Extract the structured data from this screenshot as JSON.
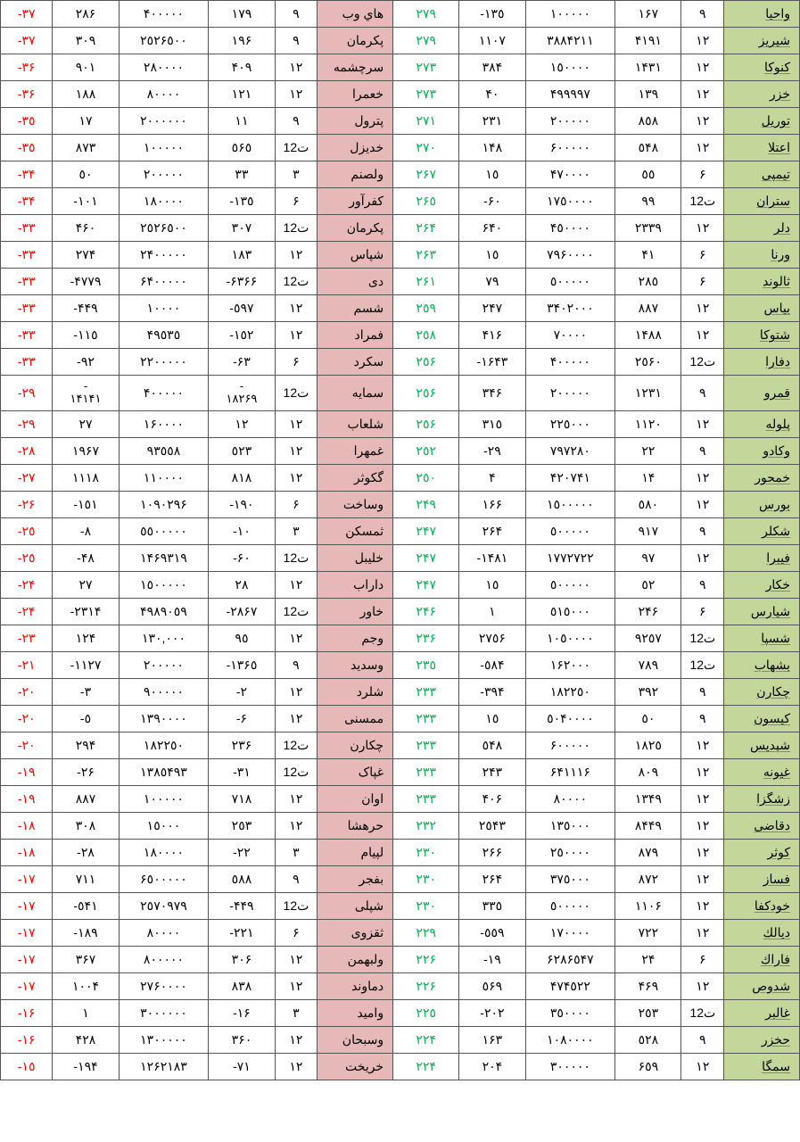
{
  "colors": {
    "greenBg": "#c4d79b",
    "pinkBg": "#e6b8b7",
    "greenText": "#00b050",
    "redText": "#ff0000",
    "border": "#555555"
  },
  "columnWidths": [
    "80px",
    "45px",
    "70px",
    "95px",
    "70px",
    "70px",
    "80px",
    "45px",
    "70px",
    "95px",
    "70px",
    "55px"
  ],
  "rows": [
    {
      "nameR": "واحيا",
      "c2": "٩",
      "c3": "١۶٧",
      "c4": "١٠٠٠٠٠",
      "c5": "-١٣٥",
      "c6g": "٢٧٩",
      "nameM": "هاي وب",
      "c8": "٩",
      "c9": "١٧٩",
      "c10": "۴٠٠٠٠٠",
      "c11": "٢٨۶",
      "c12r": "-٣٧"
    },
    {
      "nameR": "شيريز",
      "c2": "١٢",
      "c3": "۴١٩١",
      "c4": "٣٨٨۴٢١١",
      "c5": "١١٠٧",
      "c6g": "٢٧٩",
      "nameM": "پکرمان",
      "c8": "٩",
      "c9": "١٩۶",
      "c10": "٢٥٢۶٥٠٠",
      "c11": "٣٠٩",
      "c12r": "-٣٧"
    },
    {
      "nameR": "كنوكا",
      "c2": "١٢",
      "c3": "١۴٣١",
      "c4": "١٥٠٠٠٠",
      "c5": "٣٨۴",
      "c6g": "٢٧٣",
      "nameM": "سرچشمه",
      "c8": "١٢",
      "c9": "۴٠٩",
      "c10": "٢٨٠٠٠٠",
      "c11": "٩٠١",
      "c12r": "-٣۶"
    },
    {
      "nameR": "خزر",
      "c2": "١٢",
      "c3": "١٣٩",
      "c4": "۴٩٩٩٩٧",
      "c5": "۴٠",
      "c6g": "٢٧٣",
      "nameM": "خعمرا",
      "c8": "١٢",
      "c9": "١٢١",
      "c10": "٨٠٠٠٠",
      "c11": "١٨٨",
      "c12r": "-٣۶"
    },
    {
      "nameR": "توريل",
      "c2": "١٢",
      "c3": "٨٥٨",
      "c4": "٢٠٠٠٠٠",
      "c5": "٢٣١",
      "c6g": "٢٧١",
      "nameM": "پترول",
      "c8": "٩",
      "c9": "١١",
      "c10": "٢٠٠٠٠٠٠",
      "c11": "١٧",
      "c12r": "-٣٥"
    },
    {
      "nameR": "اعتلا",
      "c2": "١٢",
      "c3": "٥۴٨",
      "c4": "۶٠٠٠٠٠",
      "c5": "١۴٨",
      "c6g": "٢٧٠",
      "nameM": "خديزل",
      "c8": "ت12",
      "c9": "٥۶٥",
      "c10": "١٠٠٠٠٠",
      "c11": "٨٧٣",
      "c12r": "-٣٥"
    },
    {
      "nameR": "تيمپى",
      "c2": "۶",
      "c3": "٥٥",
      "c4": "۴٧٠٠٠٠",
      "c5": "١٥",
      "c6g": "٢۶٧",
      "nameM": "ولصنم",
      "c8": "٣",
      "c9": "٣٣",
      "c10": "٢٠٠٠٠٠",
      "c11": "٥٠",
      "c12r": "-٣۴"
    },
    {
      "nameR": "ستران",
      "c2": "ت12",
      "c3": "٩٩",
      "c4": "١٧٥٠٠٠٠",
      "c5": "-۶٠",
      "c6g": "٢۶٥",
      "nameM": "کفرآور",
      "c8": "۶",
      "c9": "-١٣٥",
      "c10": "١٨٠٠٠٠",
      "c11": "-١٠١",
      "c12r": "-٣۴"
    },
    {
      "nameR": "دلر",
      "c2": "١٢",
      "c3": "٢٣٣٩",
      "c4": "۴٥٠٠٠٠",
      "c5": "۶۴٠",
      "c6g": "٢۶۴",
      "nameM": "پکرمان",
      "c8": "ت12",
      "c9": "٣٠٧",
      "c10": "٢٥٢۶٥٠٠",
      "c11": "۴۶٠",
      "c12r": "-٣٣"
    },
    {
      "nameR": "ورنا",
      "c2": "۶",
      "c3": "۴١",
      "c4": "٧٩۶٠٠٠٠",
      "c5": "١٥",
      "c6g": "٢۶٣",
      "nameM": "شپاس",
      "c8": "١٢",
      "c9": "١٨٣",
      "c10": "٢۴٠٠٠٠٠",
      "c11": "٢٧۴",
      "c12r": "-٣٣"
    },
    {
      "nameR": "ثالوند",
      "c2": "۶",
      "c3": "٢٨٥",
      "c4": "٥٠٠٠٠٠",
      "c5": "٧٩",
      "c6g": "٢۶١",
      "nameM": "دى",
      "c8": "ت12",
      "c9": "-۶٣۶۶",
      "c10": "۶۴٠٠٠٠٠",
      "c11": "-۴٧٧٩",
      "c12r": "-٣٣"
    },
    {
      "nameR": "بياس",
      "c2": "١٢",
      "c3": "٨٨٧",
      "c4": "٣۴٠٢٠٠٠",
      "c5": "٢۴٧",
      "c6g": "٢٥٩",
      "nameM": "شسم",
      "c8": "١٢",
      "c9": "-٥٩٧",
      "c10": "١٠٠٠٠",
      "c11": "-۴۴٩",
      "c12r": "-٣٣"
    },
    {
      "nameR": "شتوكا",
      "c2": "١٢",
      "c3": "١۴٨٨",
      "c4": "٧٠٠٠٠",
      "c5": "۴١۶",
      "c6g": "٢٥٨",
      "nameM": "فمراد",
      "c8": "١٢",
      "c9": "-١٥٢",
      "c10": "۴٩٥٣٥",
      "c11": "-١١٥",
      "c12r": "-٣٣"
    },
    {
      "nameR": "دفارا",
      "c2": "ت12",
      "c3": "٢٥۶٠",
      "c4": "۴٠٠٠٠٠",
      "c5": "-١۶۴٣",
      "c6g": "٢٥۶",
      "nameM": "سکرد",
      "c8": "۶",
      "c9": "-۶٣",
      "c10": "٢٢٠٠٠٠٠",
      "c11": "-٩٢",
      "c12r": "-٣٣"
    },
    {
      "nameR": "قمرو",
      "c2": "٩",
      "c3": "١٢٣١",
      "c4": "٢٠٠٠٠٠",
      "c5": "٣۴۶",
      "c6g": "٢٥۶",
      "nameM": "سمايه",
      "c8": "ت12",
      "c9": "-\n١٨٢۶٩",
      "c10": "۴٠٠٠٠٠",
      "c11": "-\n١۴١۴١",
      "c12r": "-٢٩"
    },
    {
      "nameR": "پلوله",
      "c2": "١٢",
      "c3": "١١٢٠",
      "c4": "٢٢٥٠٠٠",
      "c5": "٣١٥",
      "c6g": "٢٥۶",
      "nameM": "شلعاب",
      "c8": "١٢",
      "c9": "١٢",
      "c10": "١۶٠٠٠٠",
      "c11": "٢٧",
      "c12r": "-٢٩"
    },
    {
      "nameR": "وكادو",
      "c2": "٩",
      "c3": "٢٢",
      "c4": "٧٩٧٢٨٠",
      "c5": "-٢٩",
      "c6g": "٢٥٢",
      "nameM": "غمهرا",
      "c8": "١٢",
      "c9": "٥٢٣",
      "c10": "٩٣٥٥٨",
      "c11": "١٩۶٧",
      "c12r": "-٢٨"
    },
    {
      "nameR": "خمحور",
      "c2": "١٢",
      "c3": "١۴",
      "c4": "۴٢٠٧۴١",
      "c5": "۴",
      "c6g": "٢٥٠",
      "nameM": "گکوثر",
      "c8": "١٢",
      "c9": "٨١٨",
      "c10": "١١٠٠٠٠",
      "c11": "١١١٨",
      "c12r": "-٢٧"
    },
    {
      "nameR": "بورس",
      "c2": "١٢",
      "c3": "٥٨٠",
      "c4": "١٥٠٠٠٠٠",
      "c5": "١۶۶",
      "c6g": "٢۴٩",
      "nameM": "وساخت",
      "c8": "۶",
      "c9": "-١٩٠",
      "c10": "١٠٩٠٢٩۶",
      "c11": "-١٥١",
      "c12r": "-٢۶"
    },
    {
      "nameR": "شكلر",
      "c2": "٩",
      "c3": "٩١٧",
      "c4": "٥٠٠٠٠٠",
      "c5": "٢۶۴",
      "c6g": "٢۴٧",
      "nameM": "ثمسکن",
      "c8": "٣",
      "c9": "-١٠",
      "c10": "٥٥٠٠٠٠٠",
      "c11": "-٨",
      "c12r": "-٢٥"
    },
    {
      "nameR": "فيبرا",
      "c2": "١٢",
      "c3": "٩٧",
      "c4": "١٧٧٢٧٢٢",
      "c5": "-١۴٨١",
      "c6g": "٢۴٧",
      "nameM": "خليبل",
      "c8": "ت12",
      "c9": "-۶٠",
      "c10": "١۴۶٩٣١٩",
      "c11": "-۴٨",
      "c12r": "-٢٥"
    },
    {
      "nameR": "خكار",
      "c2": "٩",
      "c3": "٥٢",
      "c4": "٥٠٠٠٠٠",
      "c5": "١٥",
      "c6g": "٢۴٧",
      "nameM": "داراب",
      "c8": "١٢",
      "c9": "٢٨",
      "c10": "١٥٠٠٠٠٠",
      "c11": "٢٧",
      "c12r": "-٢۴"
    },
    {
      "nameR": "شيارس",
      "c2": "۶",
      "c3": "٢۴۶",
      "c4": "٥١٥٠٠٠",
      "c5": "١",
      "c6g": "٢۴۶",
      "nameM": "خاور",
      "c8": "ت12",
      "c9": "-٢٨۶٧",
      "c10": "۴٩٨٩٠٥٩",
      "c11": "-٢٣١۴",
      "c12r": "-٢۴"
    },
    {
      "nameR": "شسپا",
      "c2": "ت12",
      "c3": "٩٢٥٧",
      "c4": "١٠٥٠٠٠٠",
      "c5": "٢٧٥۶",
      "c6g": "٢٣۶",
      "nameM": "وجم",
      "c8": "١٢",
      "c9": "٩٥",
      "c10": "١٣٠,٠٠٠",
      "c11": "١٢۴",
      "c12r": "-٢٣"
    },
    {
      "nameR": "بشهاب",
      "c2": "ت12",
      "c3": "٧٨٩",
      "c4": "١۶٢٠٠٠",
      "c5": "-٥٨۴",
      "c6g": "٢٣٥",
      "nameM": "وسديد",
      "c8": "٩",
      "c9": "-١٣۶٥",
      "c10": "٢٠٠٠٠٠",
      "c11": "-١١٢٧",
      "c12r": "-٢١"
    },
    {
      "nameR": "چكارن",
      "c2": "٩",
      "c3": "٣٩٢",
      "c4": "١٨٢٢٥٠",
      "c5": "-٣٩۴",
      "c6g": "٢٣٣",
      "nameM": "شلرد",
      "c8": "١٢",
      "c9": "-٢",
      "c10": "٩٠٠٠٠٠",
      "c11": "-٣",
      "c12r": "-٢٠"
    },
    {
      "nameR": "كيسون",
      "c2": "٩",
      "c3": "٥٠",
      "c4": "٥٠۴٠٠٠٠",
      "c5": "١٥",
      "c6g": "٢٣٣",
      "nameM": "ممسنى",
      "c8": "١٢",
      "c9": "-۶",
      "c10": "١٣٩٠٠٠٠",
      "c11": "-٥",
      "c12r": "-٢٠"
    },
    {
      "nameR": "شپديس",
      "c2": "١٢",
      "c3": "١٨٢٥",
      "c4": "۶٠٠٠٠٠",
      "c5": "٥۴٨",
      "c6g": "٢٣٣",
      "nameM": "چکارن",
      "c8": "ت12",
      "c9": "٢٣۶",
      "c10": "١٨٢٢٥٠",
      "c11": "٢٩۴",
      "c12r": "-٢٠"
    },
    {
      "nameR": "غيونه",
      "c2": "١٢",
      "c3": "٨٠٩",
      "c4": "۶۴١١١۶",
      "c5": "٢۴٣",
      "c6g": "٢٣٣",
      "nameM": "غپاک",
      "c8": "ت12",
      "c9": "-٣١",
      "c10": "١٣٨٥۴٩٣",
      "c11": "-٢۶",
      "c12r": "-١٩"
    },
    {
      "nameR": "زشگزا",
      "c2": "١٢",
      "c3": "١٣۴٩",
      "c4": "٨٠٠٠٠",
      "c5": "۴٠۶",
      "c6g": "٢٣٣",
      "nameM": "اوان",
      "c8": "١٢",
      "c9": "٧١٨",
      "c10": "١٠٠٠٠٠",
      "c11": "٨٨٧",
      "c12r": "-١٩"
    },
    {
      "nameR": "دقاضى",
      "c2": "١٢",
      "c3": "٨۴۴٩",
      "c4": "١٣٥٠٠٠",
      "c5": "٢٥۴٣",
      "c6g": "٢٣٢",
      "nameM": "حرهشا",
      "c8": "١٢",
      "c9": "٢٥٣",
      "c10": "١٥٠٠٠",
      "c11": "٣٠٨",
      "c12r": "-١٨"
    },
    {
      "nameR": "كوثر",
      "c2": "١٢",
      "c3": "٨٧٩",
      "c4": "٢٥٠٠٠٠",
      "c5": "٢۶۶",
      "c6g": "٢٣٠",
      "nameM": "لپيام",
      "c8": "٣",
      "c9": "-٢٢",
      "c10": "١٨٠٠٠٠",
      "c11": "-٢٨",
      "c12r": "-١٨"
    },
    {
      "nameR": "فساز",
      "c2": "١٢",
      "c3": "٨٧٢",
      "c4": "٣٧٥٠٠٠",
      "c5": "٢۶۴",
      "c6g": "٢٣٠",
      "nameM": "بفجر",
      "c8": "٩",
      "c9": "٥٨٨",
      "c10": "۶٥٠٠٠٠٠",
      "c11": "٧١١",
      "c12r": "-١٧"
    },
    {
      "nameR": "خودكفا",
      "c2": "١٢",
      "c3": "١١٠۶",
      "c4": "٥٠٠٠٠٠",
      "c5": "٣٣٥",
      "c6g": "٢٣٠",
      "nameM": "شپلى",
      "c8": "ت12",
      "c9": "-۴۴٩",
      "c10": "٢٥٧٠٩٧٩",
      "c11": "-٥۴١",
      "c12r": "-١٧"
    },
    {
      "nameR": "ديالك",
      "c2": "١٢",
      "c3": "٧٢٢",
      "c4": "١٧٠٠٠٠",
      "c5": "-٥٥٩",
      "c6g": "٢٢٩",
      "nameM": "ثقزوى",
      "c8": "۶",
      "c9": "-٢٢١",
      "c10": "٨٠٠٠٠",
      "c11": "-١٨٩",
      "c12r": "-١٧"
    },
    {
      "nameR": "فاراك",
      "c2": "۶",
      "c3": "٢۴",
      "c4": "۶٢٨۶٥۴٧",
      "c5": "-١٩",
      "c6g": "٢٢۶",
      "nameM": "ولبهمن",
      "c8": "١٢",
      "c9": "٣٠۶",
      "c10": "٨٠٠٠٠٠",
      "c11": "٣۶٧",
      "c12r": "-١٧"
    },
    {
      "nameR": "شدوص",
      "c2": "١٢",
      "c3": "۴۶٩",
      "c4": "۴٧۴٥٢٢",
      "c5": "٥۶٩",
      "c6g": "٢٢۶",
      "nameM": "دماوند",
      "c8": "١٢",
      "c9": "٨٣٨",
      "c10": "٢٧۶٠٠٠٠",
      "c11": "١٠٠۴",
      "c12r": "-١٧"
    },
    {
      "nameR": "غالبر",
      "c2": "ت12",
      "c3": "٢٥٣",
      "c4": "٣٥٠٠٠٠",
      "c5": "-٢٠٢",
      "c6g": "٢٢٥",
      "nameM": "واميد",
      "c8": "٣",
      "c9": "-١۶",
      "c10": "٣٠٠٠٠٠٠",
      "c11": "١",
      "c12r": "-١۶"
    },
    {
      "nameR": "حخزر",
      "c2": "٩",
      "c3": "٥٢٨",
      "c4": "١٠٨٠٠٠٠",
      "c5": "١۶٣",
      "c6g": "٢٢۴",
      "nameM": "وسبحان",
      "c8": "١٢",
      "c9": "٣۶٠",
      "c10": "١٣٠٠٠٠٠",
      "c11": "۴٢٨",
      "c12r": "-١۶"
    },
    {
      "nameR": "سمگا",
      "c2": "١٢",
      "c3": "۶٥٩",
      "c4": "٣٠٠٠٠٠",
      "c5": "٢٠۴",
      "c6g": "٢٢۴",
      "nameM": "خريخت",
      "c8": "١٢",
      "c9": "-٧١",
      "c10": "١٢۶٢١٨٣",
      "c11": "-١٩۴",
      "c12r": "-١٥"
    }
  ]
}
